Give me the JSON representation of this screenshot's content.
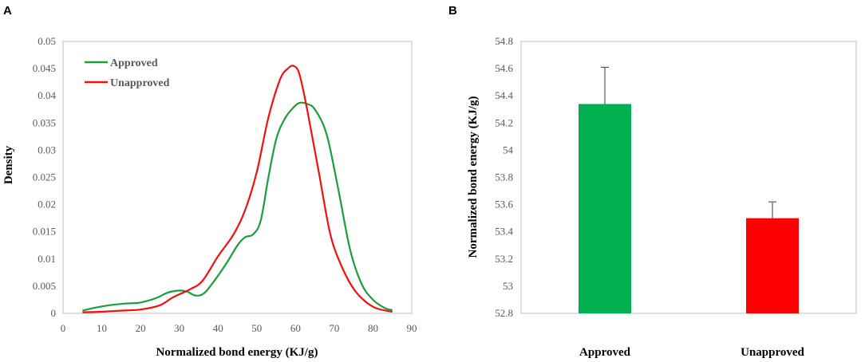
{
  "panels": {
    "a_label": "A",
    "b_label": "B"
  },
  "chart_data": [
    {
      "type": "line",
      "panel": "A",
      "title": "",
      "xlabel": "Normalized bond energy (KJ/g)",
      "ylabel": "Density",
      "xlim": [
        0,
        90
      ],
      "ylim": [
        0,
        0.05
      ],
      "x_ticks": [
        "0",
        "10",
        "20",
        "30",
        "40",
        "50",
        "60",
        "70",
        "80",
        "90"
      ],
      "y_ticks": [
        "0",
        "0.005",
        "0.01",
        "0.015",
        "0.02",
        "0.025",
        "0.03",
        "0.035",
        "0.04",
        "0.045",
        "0.05"
      ],
      "legend_position": "top-left",
      "series": [
        {
          "name": "Approved",
          "color": "#1a9e3b",
          "points": [
            [
              5,
              0.0005
            ],
            [
              8,
              0.001
            ],
            [
              12,
              0.0015
            ],
            [
              16,
              0.0018
            ],
            [
              20,
              0.002
            ],
            [
              24,
              0.0028
            ],
            [
              27,
              0.0038
            ],
            [
              30,
              0.0042
            ],
            [
              32,
              0.004
            ],
            [
              34,
              0.0033
            ],
            [
              36,
              0.0035
            ],
            [
              38,
              0.005
            ],
            [
              42,
              0.009
            ],
            [
              45,
              0.0125
            ],
            [
              47,
              0.014
            ],
            [
              49,
              0.0145
            ],
            [
              51,
              0.017
            ],
            [
              53,
              0.025
            ],
            [
              55,
              0.032
            ],
            [
              57,
              0.0355
            ],
            [
              59,
              0.0375
            ],
            [
              61,
              0.0387
            ],
            [
              63,
              0.0385
            ],
            [
              65,
              0.0375
            ],
            [
              68,
              0.033
            ],
            [
              71,
              0.023
            ],
            [
              74,
              0.012
            ],
            [
              77,
              0.0055
            ],
            [
              80,
              0.0025
            ],
            [
              83,
              0.001
            ],
            [
              85,
              0.0006
            ]
          ]
        },
        {
          "name": "Unapproved",
          "color": "#ee1111",
          "points": [
            [
              5,
              0.0002
            ],
            [
              10,
              0.0003
            ],
            [
              15,
              0.0005
            ],
            [
              20,
              0.0007
            ],
            [
              25,
              0.0015
            ],
            [
              28,
              0.0028
            ],
            [
              30,
              0.0035
            ],
            [
              33,
              0.0045
            ],
            [
              36,
              0.006
            ],
            [
              40,
              0.0105
            ],
            [
              44,
              0.0145
            ],
            [
              47,
              0.019
            ],
            [
              50,
              0.026
            ],
            [
              53,
              0.036
            ],
            [
              56,
              0.043
            ],
            [
              58,
              0.045
            ],
            [
              59.5,
              0.0455
            ],
            [
              61,
              0.044
            ],
            [
              63,
              0.0375
            ],
            [
              66,
              0.026
            ],
            [
              69,
              0.0145
            ],
            [
              72,
              0.0085
            ],
            [
              75,
              0.0045
            ],
            [
              78,
              0.0022
            ],
            [
              81,
              0.0009
            ],
            [
              85,
              0.0003
            ]
          ]
        }
      ]
    },
    {
      "type": "bar",
      "panel": "B",
      "title": "",
      "xlabel": "",
      "ylabel": "Normalized bond energy (KJ/g)",
      "ylim": [
        52.8,
        54.8
      ],
      "y_ticks": [
        "52.8",
        "53",
        "53.2",
        "53.4",
        "53.6",
        "53.8",
        "54",
        "54.2",
        "54.4",
        "54.6",
        "54.8"
      ],
      "categories": [
        "Approved",
        "Unapproved"
      ],
      "values": [
        54.34,
        53.5
      ],
      "error": [
        0.27,
        0.12
      ],
      "colors": [
        "#00b050",
        "#ff0000"
      ]
    }
  ]
}
